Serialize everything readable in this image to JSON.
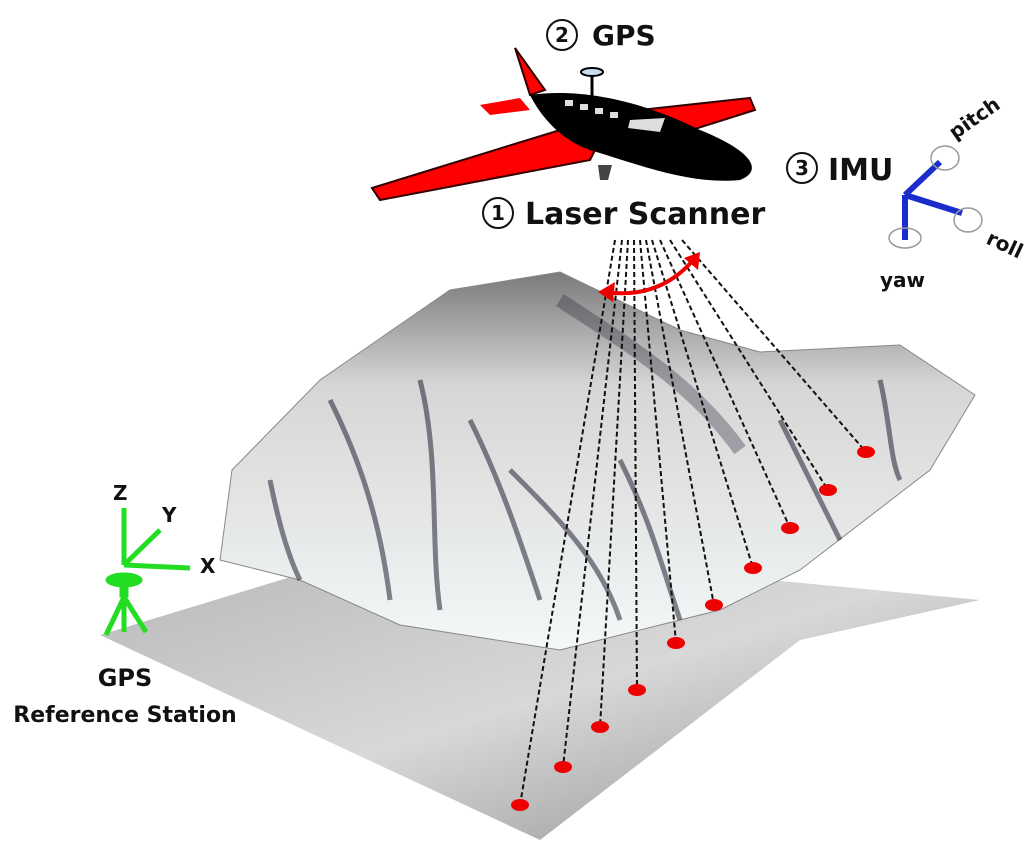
{
  "components": [
    {
      "number": "2",
      "label": "GPS"
    },
    {
      "number": "1",
      "label": "Laser Scanner"
    },
    {
      "number": "3",
      "label": "IMU"
    }
  ],
  "imu_axes": [
    "pitch",
    "roll",
    "yaw"
  ],
  "reference_axes": [
    "Z",
    "Y",
    "X"
  ],
  "reference_station": [
    "GPS",
    "Reference Station"
  ]
}
